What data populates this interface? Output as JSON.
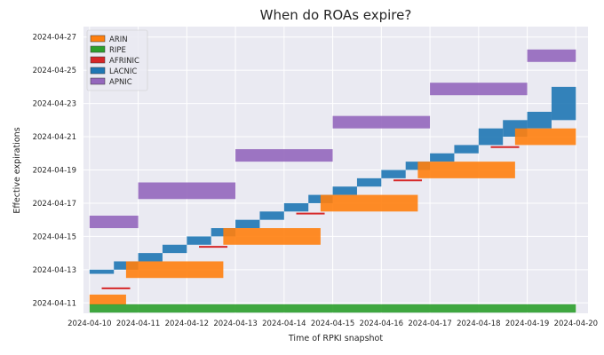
{
  "chart_data": {
    "type": "scatter",
    "title": "When do ROAs expire?",
    "xlabel": "Time of RPKI snapshot",
    "ylabel": "Effective expirations",
    "xlim": [
      "2024-04-09 21:00",
      "2024-04-20 06:00"
    ],
    "ylim": [
      "2024-04-10 09:00",
      "2024-04-27 15:00"
    ],
    "x_ticks": [
      "2024-04-10",
      "2024-04-11",
      "2024-04-12",
      "2024-04-13",
      "2024-04-14",
      "2024-04-15",
      "2024-04-16",
      "2024-04-17",
      "2024-04-18",
      "2024-04-19",
      "2024-04-20"
    ],
    "y_ticks": [
      "2024-04-11",
      "2024-04-13",
      "2024-04-15",
      "2024-04-17",
      "2024-04-19",
      "2024-04-21",
      "2024-04-23",
      "2024-04-25",
      "2024-04-27"
    ],
    "grid": true,
    "legend_position": "upper-left",
    "series": [
      {
        "name": "ARIN",
        "color": "#ff7f0e",
        "x": [
          "2024-04-10",
          "2024-04-10 18:00",
          "2024-04-12 18:00",
          "2024-04-14 18:00",
          "2024-04-16 18:00",
          "2024-04-18 18:00",
          "2024-04-20"
        ],
        "y_min": [
          "2024-04-10 21:00",
          "2024-04-12 12:00",
          "2024-04-14 12:00",
          "2024-04-16 12:00",
          "2024-04-18 12:00",
          "2024-04-20 12:00",
          "2024-04-21"
        ],
        "y_max": [
          "2024-04-11 12:00",
          "2024-04-13 12:00",
          "2024-04-15 12:00",
          "2024-04-17 12:00",
          "2024-04-19 12:00",
          "2024-04-21 12:00",
          "2024-04-21 12:00"
        ]
      },
      {
        "name": "RIPE",
        "color": "#2ca02c",
        "x": [
          "2024-04-10",
          "2024-04-20"
        ],
        "y_min": [
          "2024-04-10 10:00",
          "2024-04-20 10:00"
        ],
        "y_max": [
          "2024-04-10 22:00",
          "2024-04-20 22:00"
        ]
      },
      {
        "name": "AFRINIC",
        "color": "#d62728",
        "x": [
          "2024-04-10 06:00",
          "2024-04-12 06:00",
          "2024-04-14 06:00",
          "2024-04-16 06:00",
          "2024-04-18 06:00"
        ],
        "y": [
          "2024-04-11 21:00",
          "2024-04-14 09:00",
          "2024-04-16 09:00",
          "2024-04-18 09:00",
          "2024-04-20 09:00"
        ]
      },
      {
        "name": "LACNIC",
        "color": "#1f77b4",
        "x": [
          "2024-04-10",
          "2024-04-10 12:00",
          "2024-04-11",
          "2024-04-11 12:00",
          "2024-04-12",
          "2024-04-12 12:00",
          "2024-04-13",
          "2024-04-13 12:00",
          "2024-04-14",
          "2024-04-14 12:00",
          "2024-04-15",
          "2024-04-15 12:00",
          "2024-04-16",
          "2024-04-16 12:00",
          "2024-04-17",
          "2024-04-17 12:00",
          "2024-04-18",
          "2024-04-18 12:00",
          "2024-04-19",
          "2024-04-19 12:00",
          "2024-04-20"
        ],
        "y_min": [
          "2024-04-12 18:00",
          "2024-04-13",
          "2024-04-13 12:00",
          "2024-04-14",
          "2024-04-14 12:00",
          "2024-04-15",
          "2024-04-15 12:00",
          "2024-04-16",
          "2024-04-16 12:00",
          "2024-04-17",
          "2024-04-17 12:00",
          "2024-04-18",
          "2024-04-18 12:00",
          "2024-04-19",
          "2024-04-19 12:00",
          "2024-04-20",
          "2024-04-20 12:00",
          "2024-04-21",
          "2024-04-21 12:00",
          "2024-04-22",
          "2024-04-22 12:00"
        ],
        "y_max": [
          "2024-04-13",
          "2024-04-13 12:00",
          "2024-04-14",
          "2024-04-14 12:00",
          "2024-04-15",
          "2024-04-15 12:00",
          "2024-04-16",
          "2024-04-16 12:00",
          "2024-04-17",
          "2024-04-17 12:00",
          "2024-04-18",
          "2024-04-18 12:00",
          "2024-04-19",
          "2024-04-19 12:00",
          "2024-04-20",
          "2024-04-20 12:00",
          "2024-04-21 12:00",
          "2024-04-22",
          "2024-04-22 12:00",
          "2024-04-24",
          "2024-04-24 12:00"
        ]
      },
      {
        "name": "APNIC",
        "color": "#9467bd",
        "x": [
          "2024-04-10",
          "2024-04-11",
          "2024-04-13",
          "2024-04-15",
          "2024-04-17",
          "2024-04-19",
          "2024-04-20"
        ],
        "y_min": [
          "2024-04-15 12:00",
          "2024-04-17 06:00",
          "2024-04-19 12:00",
          "2024-04-21 12:00",
          "2024-04-23 12:00",
          "2024-04-25 12:00",
          "2024-04-25 12:00"
        ],
        "y_max": [
          "2024-04-16 06:00",
          "2024-04-18 06:00",
          "2024-04-20 06:00",
          "2024-04-22 06:00",
          "2024-04-24 06:00",
          "2024-04-26 06:00",
          "2024-04-26 06:00"
        ]
      }
    ]
  }
}
